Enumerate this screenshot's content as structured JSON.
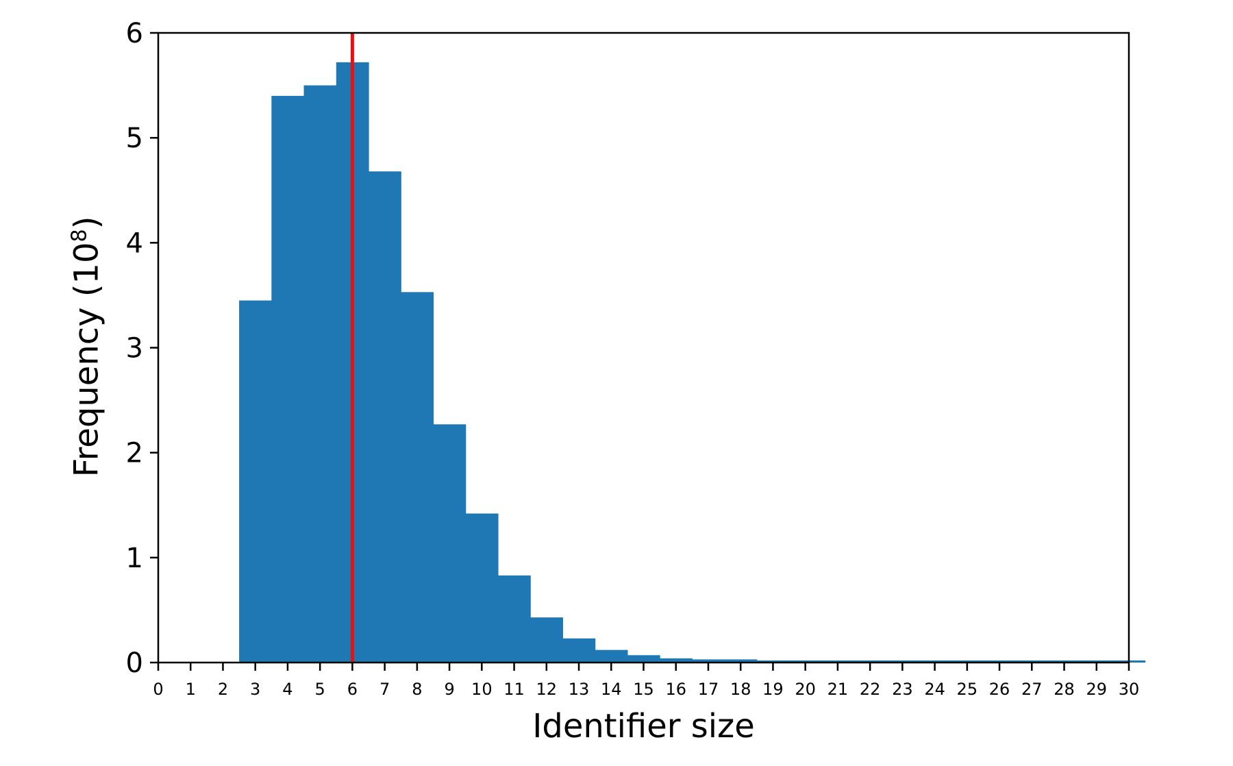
{
  "chart_data": {
    "type": "bar",
    "title": "",
    "xlabel": "Identifier size",
    "ylabel": {
      "prefix": "Frequency (10",
      "superscript": "8",
      "suffix": ")"
    },
    "xlim": [
      0,
      30
    ],
    "ylim": [
      0,
      6
    ],
    "x_ticks": [
      0,
      1,
      2,
      3,
      4,
      5,
      6,
      7,
      8,
      9,
      10,
      11,
      12,
      13,
      14,
      15,
      16,
      17,
      18,
      19,
      20,
      21,
      22,
      23,
      24,
      25,
      26,
      27,
      28,
      29,
      30
    ],
    "y_ticks": [
      0,
      1,
      2,
      3,
      4,
      5,
      6
    ],
    "bins": {
      "x": [
        3,
        4,
        5,
        6,
        7,
        8,
        9,
        10,
        11,
        12,
        13,
        14,
        15,
        16,
        17,
        18,
        19,
        20,
        21,
        22,
        23,
        24,
        25,
        26,
        27,
        28,
        29,
        30
      ],
      "values": [
        3.45,
        5.4,
        5.5,
        5.72,
        4.68,
        3.53,
        2.27,
        1.42,
        0.83,
        0.43,
        0.23,
        0.12,
        0.07,
        0.04,
        0.03,
        0.03,
        0.02,
        0.02,
        0.02,
        0.02,
        0.02,
        0.02,
        0.02,
        0.02,
        0.02,
        0.02,
        0.02,
        0.02
      ]
    },
    "vline": {
      "x": 6,
      "color": "#e8110f"
    },
    "bar_color": "#1f77b4",
    "grid": false,
    "legend": "none"
  }
}
